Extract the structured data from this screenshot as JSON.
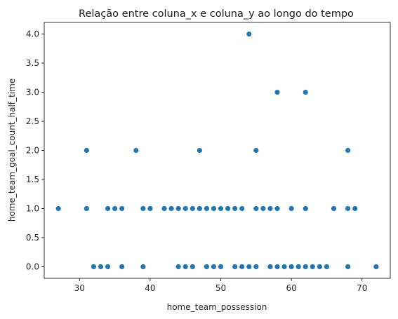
{
  "chart_data": {
    "type": "scatter",
    "title": "Relação entre coluna_x e coluna_y ao longo do tempo",
    "xlabel": "home_team_possession",
    "ylabel": "home_team_goal_count_half_time",
    "xlim": [
      25,
      74
    ],
    "ylim": [
      -0.2,
      4.2
    ],
    "xticks": [
      30,
      40,
      50,
      60,
      70
    ],
    "yticks": [
      0.0,
      0.5,
      1.0,
      1.5,
      2.0,
      2.5,
      3.0,
      3.5,
      4.0
    ],
    "xtick_labels": [
      "30",
      "40",
      "50",
      "60",
      "70"
    ],
    "ytick_labels": [
      "0.0",
      "0.5",
      "1.0",
      "1.5",
      "2.0",
      "2.5",
      "3.0",
      "3.5",
      "4.0"
    ],
    "grid": false,
    "marker_color": "#1f77b4",
    "series": [
      {
        "points": [
          [
            27,
            1
          ],
          [
            31,
            1
          ],
          [
            31,
            2
          ],
          [
            32,
            0
          ],
          [
            33,
            0
          ],
          [
            34,
            0
          ],
          [
            34,
            1
          ],
          [
            35,
            1
          ],
          [
            36,
            1
          ],
          [
            36,
            0
          ],
          [
            38,
            2
          ],
          [
            39,
            1
          ],
          [
            39,
            0
          ],
          [
            40,
            1
          ],
          [
            42,
            1
          ],
          [
            43,
            1
          ],
          [
            44,
            1
          ],
          [
            44,
            0
          ],
          [
            45,
            1
          ],
          [
            45,
            0
          ],
          [
            46,
            1
          ],
          [
            46,
            0
          ],
          [
            47,
            1
          ],
          [
            47,
            2
          ],
          [
            48,
            1
          ],
          [
            48,
            0
          ],
          [
            49,
            1
          ],
          [
            49,
            0
          ],
          [
            50,
            1
          ],
          [
            50,
            0
          ],
          [
            51,
            1
          ],
          [
            52,
            1
          ],
          [
            52,
            0
          ],
          [
            53,
            1
          ],
          [
            53,
            0
          ],
          [
            54,
            4
          ],
          [
            54,
            0
          ],
          [
            55,
            2
          ],
          [
            55,
            1
          ],
          [
            55,
            0
          ],
          [
            56,
            1
          ],
          [
            57,
            1
          ],
          [
            57,
            0
          ],
          [
            58,
            3
          ],
          [
            58,
            1
          ],
          [
            58,
            0
          ],
          [
            59,
            0
          ],
          [
            60,
            1
          ],
          [
            60,
            0
          ],
          [
            61,
            0
          ],
          [
            62,
            3
          ],
          [
            62,
            1
          ],
          [
            62,
            0
          ],
          [
            63,
            0
          ],
          [
            64,
            0
          ],
          [
            65,
            0
          ],
          [
            66,
            1
          ],
          [
            68,
            2
          ],
          [
            68,
            1
          ],
          [
            68,
            0
          ],
          [
            69,
            1
          ],
          [
            72,
            0
          ]
        ]
      }
    ]
  }
}
